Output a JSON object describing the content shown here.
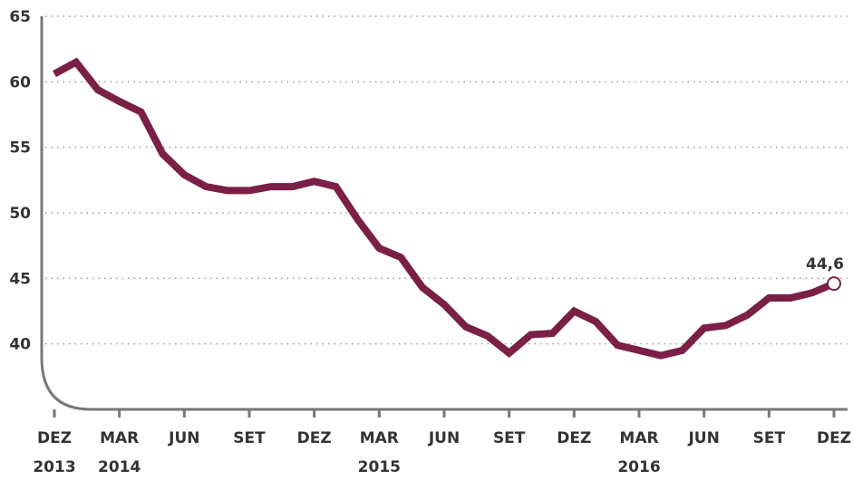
{
  "chart_data": {
    "type": "line",
    "categories": [
      "DEZ 2013",
      null,
      null,
      "MAR 2014",
      null,
      null,
      "JUN",
      null,
      null,
      "SET",
      null,
      null,
      "DEZ",
      null,
      null,
      "MAR 2015",
      null,
      null,
      "JUN",
      null,
      null,
      "SET",
      null,
      null,
      "DEZ",
      null,
      null,
      "MAR 2016",
      null,
      null,
      "JUN",
      null,
      null,
      "SET",
      null,
      null,
      "DEZ"
    ],
    "series": [
      {
        "color": "#7a1f45",
        "values": [
          60.6,
          61.5,
          59.4,
          58.5,
          57.7,
          54.5,
          52.9,
          52.0,
          51.7,
          51.7,
          52.0,
          52.0,
          52.4,
          52.0,
          49.5,
          47.3,
          46.6,
          44.3,
          43.0,
          41.3,
          40.6,
          39.3,
          40.7,
          40.8,
          42.5,
          41.7,
          39.9,
          39.5,
          39.1,
          39.5,
          41.2,
          41.4,
          42.2,
          43.5,
          43.5,
          43.9,
          44.6
        ],
        "value_labels": [
          null,
          null,
          null,
          null,
          null,
          null,
          null,
          null,
          null,
          null,
          null,
          null,
          null,
          null,
          null,
          null,
          null,
          null,
          null,
          null,
          null,
          null,
          null,
          null,
          null,
          null,
          null,
          null,
          null,
          null,
          null,
          null,
          null,
          null,
          null,
          null,
          "44,6"
        ]
      }
    ],
    "ylim": [
      35,
      65
    ],
    "yticks": [
      40,
      45,
      50,
      55,
      60,
      65
    ],
    "grid": true
  }
}
